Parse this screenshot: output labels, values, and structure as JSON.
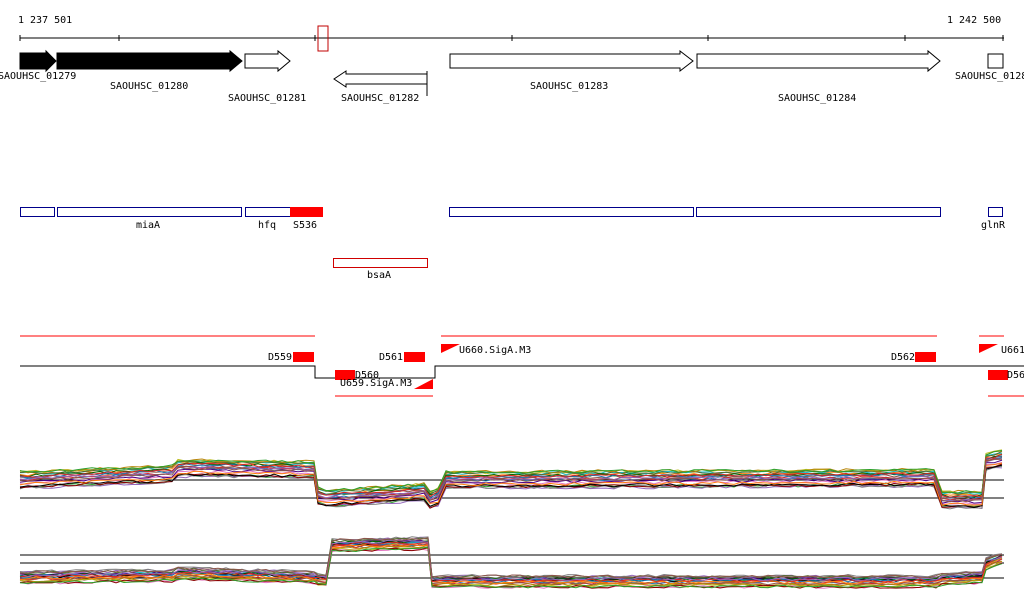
{
  "coordinates": {
    "start": "1 237 501",
    "end": "1 242 500"
  },
  "genes": [
    {
      "id": "SAOUHSC_01279",
      "label": "SAOUHSC_01279",
      "strand": "+",
      "fill": "black"
    },
    {
      "id": "SAOUHSC_01280",
      "label": "SAOUHSC_01280",
      "strand": "+",
      "fill": "black"
    },
    {
      "id": "SAOUHSC_01281",
      "label": "SAOUHSC_01281",
      "strand": "+",
      "fill": "white"
    },
    {
      "id": "SAOUHSC_01282",
      "label": "SAOUHSC_01282",
      "strand": "-",
      "fill": "white"
    },
    {
      "id": "SAOUHSC_01283",
      "label": "SAOUHSC_01283",
      "strand": "+",
      "fill": "white"
    },
    {
      "id": "SAOUHSC_01284",
      "label": "SAOUHSC_01284",
      "strand": "+",
      "fill": "white"
    },
    {
      "id": "SAOUHSC_0128x",
      "label": "SAOUHSC_0128",
      "strand": "+",
      "fill": "white"
    }
  ],
  "annotations": [
    {
      "id": "ann1",
      "label": "",
      "color": "#00008b",
      "filled": false
    },
    {
      "id": "miaA",
      "label": "miaA",
      "color": "#00008b",
      "filled": false
    },
    {
      "id": "hfq",
      "label": "hfq",
      "color": "#00008b",
      "filled": false
    },
    {
      "id": "S536",
      "label": "S536",
      "color": "#ff0000",
      "filled": true
    },
    {
      "id": "ann5",
      "label": "",
      "color": "#00008b",
      "filled": false
    },
    {
      "id": "ann6",
      "label": "",
      "color": "#00008b",
      "filled": false
    },
    {
      "id": "glnR",
      "label": "glnR",
      "color": "#00008b",
      "filled": false
    },
    {
      "id": "bsaA",
      "label": "bsaA",
      "color": "#ff0000",
      "filled": false
    }
  ],
  "segments": [
    {
      "id": "D559",
      "label": "D559"
    },
    {
      "id": "D560",
      "label": "D560"
    },
    {
      "id": "D561",
      "label": "D561"
    },
    {
      "id": "D562",
      "label": "D562"
    },
    {
      "id": "D56x",
      "label": "D56"
    },
    {
      "id": "U659",
      "label": "U659.SigA.M3"
    },
    {
      "id": "U660",
      "label": "U660.SigA.M3"
    },
    {
      "id": "U661",
      "label": "U661."
    }
  ],
  "colors": {
    "track": "#000000",
    "feature": "#ff0000",
    "annotation": "#00008b"
  }
}
